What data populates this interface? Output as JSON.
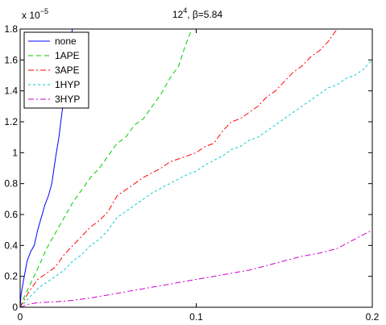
{
  "chart_data": {
    "type": "line",
    "title": {
      "base": "12",
      "sup": "4",
      "rest": ", β=5.84"
    },
    "xlabel": "",
    "ylabel": "",
    "xlim": [
      0,
      0.2
    ],
    "ylim": [
      0,
      1.8
    ],
    "y_exponent_label": {
      "base": "x 10",
      "sup": "−5"
    },
    "x_ticks": [
      0,
      0.1,
      0.2
    ],
    "x_tick_labels": [
      "0",
      "0.1",
      "0.2"
    ],
    "y_ticks": [
      0,
      0.2,
      0.4,
      0.6,
      0.8,
      1.0,
      1.2,
      1.4,
      1.6,
      1.8
    ],
    "y_tick_labels": [
      "0",
      "0.2",
      "0.4",
      "0.6",
      "0.8",
      "1",
      "1.2",
      "1.4",
      "1.6",
      "1.8"
    ],
    "grid": false,
    "legend_position": "top-left",
    "series": [
      {
        "name": "none",
        "color": "#0000ff",
        "dash": "",
        "x": [
          0,
          0.0005,
          0.002,
          0.004,
          0.006,
          0.008,
          0.01,
          0.012,
          0.014,
          0.016,
          0.018,
          0.02,
          0.022,
          0.024,
          0.026,
          0.028,
          0.0296
        ],
        "y": [
          0,
          0.08,
          0.18,
          0.3,
          0.36,
          0.4,
          0.5,
          0.58,
          0.66,
          0.72,
          0.8,
          0.96,
          1.1,
          1.28,
          1.4,
          1.62,
          1.8
        ]
      },
      {
        "name": "1APE",
        "color": "#00cc00",
        "dash": "6,4",
        "x": [
          0,
          0.002,
          0.005,
          0.01,
          0.015,
          0.02,
          0.025,
          0.03,
          0.035,
          0.04,
          0.045,
          0.05,
          0.055,
          0.06,
          0.065,
          0.07,
          0.075,
          0.08,
          0.085,
          0.09,
          0.094,
          0.0975
        ],
        "y": [
          0,
          0.06,
          0.13,
          0.25,
          0.38,
          0.48,
          0.58,
          0.68,
          0.76,
          0.84,
          0.9,
          0.98,
          1.06,
          1.1,
          1.18,
          1.22,
          1.3,
          1.38,
          1.48,
          1.56,
          1.7,
          1.8
        ]
      },
      {
        "name": "3APE",
        "color": "#ff0000",
        "dash": "7,3,2,3",
        "x": [
          0,
          0.005,
          0.01,
          0.015,
          0.02,
          0.025,
          0.03,
          0.035,
          0.04,
          0.045,
          0.05,
          0.055,
          0.06,
          0.065,
          0.07,
          0.075,
          0.08,
          0.085,
          0.09,
          0.095,
          0.1,
          0.105,
          0.11,
          0.115,
          0.12,
          0.125,
          0.13,
          0.135,
          0.14,
          0.145,
          0.15,
          0.155,
          0.16,
          0.165,
          0.17,
          0.175,
          0.18
        ],
        "y": [
          0,
          0.1,
          0.18,
          0.22,
          0.26,
          0.34,
          0.4,
          0.46,
          0.52,
          0.56,
          0.62,
          0.72,
          0.76,
          0.8,
          0.84,
          0.87,
          0.9,
          0.94,
          0.96,
          0.98,
          1.0,
          1.04,
          1.06,
          1.14,
          1.2,
          1.22,
          1.26,
          1.3,
          1.36,
          1.4,
          1.46,
          1.52,
          1.56,
          1.62,
          1.66,
          1.72,
          1.8
        ]
      },
      {
        "name": "1HYP",
        "color": "#00cccc",
        "dash": "3,3",
        "x": [
          0,
          0.005,
          0.01,
          0.015,
          0.02,
          0.025,
          0.03,
          0.035,
          0.04,
          0.045,
          0.05,
          0.055,
          0.06,
          0.065,
          0.07,
          0.075,
          0.08,
          0.085,
          0.09,
          0.095,
          0.1,
          0.105,
          0.11,
          0.115,
          0.12,
          0.125,
          0.13,
          0.135,
          0.14,
          0.145,
          0.15,
          0.155,
          0.16,
          0.165,
          0.17,
          0.175,
          0.18,
          0.185,
          0.19,
          0.195,
          0.2
        ],
        "y": [
          0,
          0.06,
          0.12,
          0.16,
          0.2,
          0.24,
          0.3,
          0.34,
          0.4,
          0.44,
          0.5,
          0.58,
          0.62,
          0.66,
          0.7,
          0.74,
          0.77,
          0.8,
          0.83,
          0.86,
          0.88,
          0.92,
          0.95,
          0.98,
          1.02,
          1.04,
          1.08,
          1.1,
          1.14,
          1.18,
          1.22,
          1.26,
          1.3,
          1.34,
          1.38,
          1.42,
          1.44,
          1.48,
          1.5,
          1.54,
          1.6
        ]
      },
      {
        "name": "3HYP",
        "color": "#cc00cc",
        "dash": "7,3,2,3",
        "x": [
          0,
          0.005,
          0.01,
          0.02,
          0.03,
          0.04,
          0.05,
          0.06,
          0.07,
          0.08,
          0.09,
          0.1,
          0.11,
          0.12,
          0.13,
          0.14,
          0.15,
          0.16,
          0.17,
          0.18,
          0.19,
          0.2
        ],
        "y": [
          0,
          0.02,
          0.03,
          0.035,
          0.045,
          0.06,
          0.08,
          0.1,
          0.12,
          0.14,
          0.16,
          0.18,
          0.2,
          0.22,
          0.24,
          0.27,
          0.3,
          0.33,
          0.35,
          0.38,
          0.44,
          0.5
        ]
      }
    ]
  }
}
